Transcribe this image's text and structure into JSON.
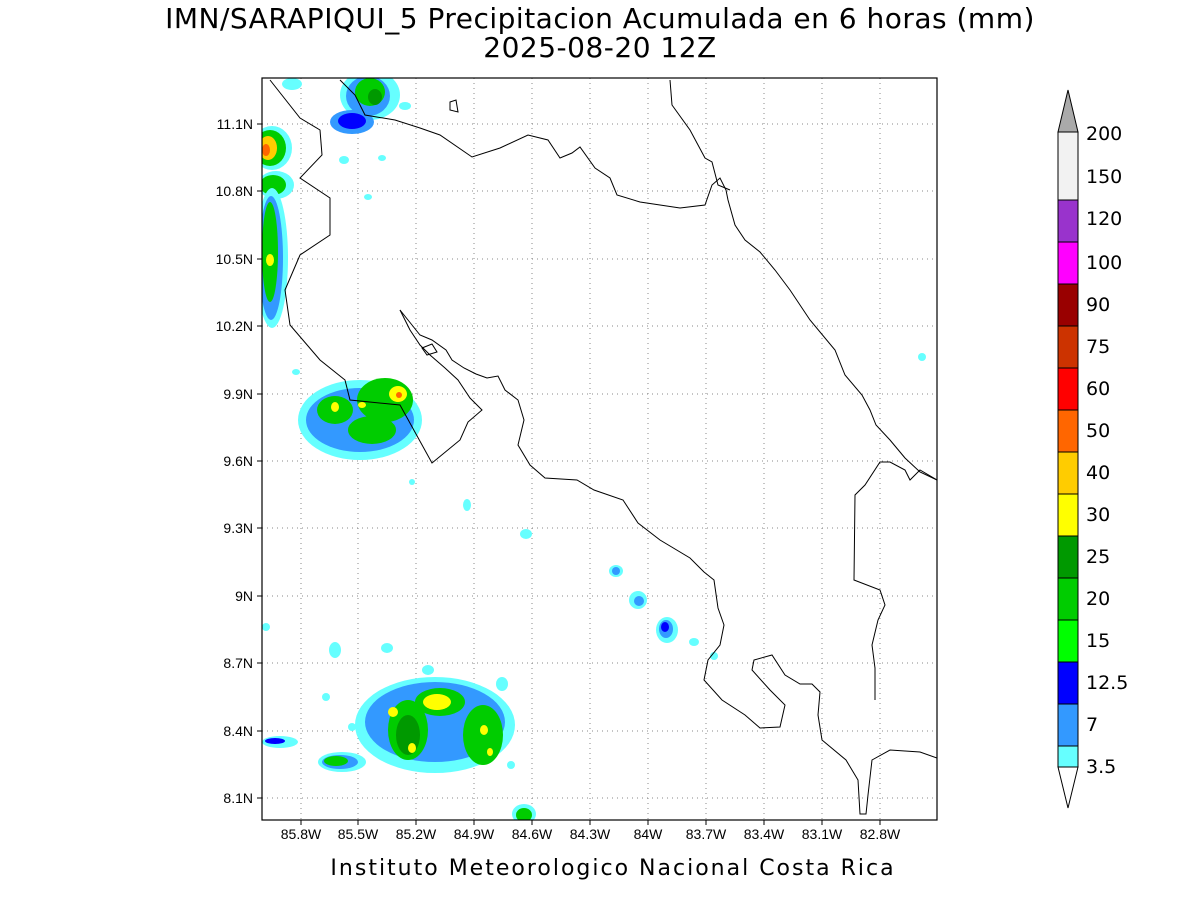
{
  "title": {
    "line1": "IMN/SARAPIQUI_5 Precipitacion Acumulada en 6 horas (mm)",
    "line2": "2025-08-20 12Z"
  },
  "credit": "Instituto Meteorologico Nacional Costa Rica",
  "map": {
    "lon_range": [
      -85.97,
      -83.0
    ],
    "lat_range": [
      8.0,
      11.3
    ],
    "grid": "dotted",
    "y_ticks": [
      "11.1N",
      "10.8N",
      "10.5N",
      "10.2N",
      "9.9N",
      "9.6N",
      "9.3N",
      "9N",
      "8.7N",
      "8.4N",
      "8.1N"
    ],
    "x_ticks": [
      "85.8W",
      "85.5W",
      "85.2W",
      "84.9W",
      "84.6W",
      "84.3W",
      "84W",
      "83.7W",
      "83.4W",
      "83.1W",
      "82.8W"
    ]
  },
  "colorbar": {
    "labels": [
      "3.5",
      "7",
      "12.5",
      "15",
      "20",
      "25",
      "30",
      "40",
      "50",
      "60",
      "75",
      "90",
      "100",
      "120",
      "150",
      "200"
    ],
    "colors": [
      "#ffffff",
      "#66ffff",
      "#3399ff",
      "#0000ff",
      "#00ff00",
      "#00cc00",
      "#009900",
      "#ffff00",
      "#ffcc00",
      "#ff6600",
      "#ff0000",
      "#cc3300",
      "#990000",
      "#ff00ff",
      "#9933cc",
      "#f2f2f2",
      "#aaaaaa"
    ]
  }
}
